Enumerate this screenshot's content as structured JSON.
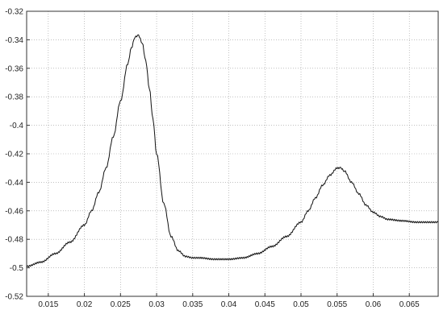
{
  "chart_data": {
    "type": "line",
    "title": "",
    "xlabel": "",
    "ylabel": "",
    "xlim": [
      0.012,
      0.069
    ],
    "ylim": [
      -0.52,
      -0.32
    ],
    "grid": true,
    "x_ticks": [
      0.015,
      0.02,
      0.025,
      0.03,
      0.035,
      0.04,
      0.045,
      0.05,
      0.055,
      0.06,
      0.065
    ],
    "x_tick_labels": [
      "0.015",
      "0.02",
      "0.025",
      "0.03",
      "0.035",
      "0.04",
      "0.045",
      "0.05",
      "0.055",
      "0.06",
      "0.065"
    ],
    "y_ticks": [
      -0.32,
      -0.34,
      -0.36,
      -0.38,
      -0.4,
      -0.42,
      -0.44,
      -0.46,
      -0.48,
      -0.5,
      -0.52
    ],
    "y_tick_labels": [
      "-0.32",
      "-0.34",
      "-0.36",
      "-0.38",
      "-0.4",
      "-0.42",
      "-0.44",
      "-0.46",
      "-0.48",
      "-0.5",
      "-0.52"
    ],
    "series": [
      {
        "color": "#111111",
        "x": [
          0.012,
          0.014,
          0.016,
          0.018,
          0.02,
          0.021,
          0.022,
          0.023,
          0.024,
          0.025,
          0.026,
          0.0265,
          0.027,
          0.0275,
          0.028,
          0.0285,
          0.029,
          0.0295,
          0.03,
          0.031,
          0.032,
          0.033,
          0.034,
          0.035,
          0.036,
          0.038,
          0.04,
          0.042,
          0.044,
          0.046,
          0.048,
          0.05,
          0.051,
          0.052,
          0.053,
          0.054,
          0.055,
          0.0555,
          0.056,
          0.057,
          0.058,
          0.059,
          0.06,
          0.061,
          0.062,
          0.064,
          0.066,
          0.069
        ],
        "y": [
          -0.499,
          -0.496,
          -0.49,
          -0.482,
          -0.47,
          -0.46,
          -0.447,
          -0.43,
          -0.408,
          -0.383,
          -0.357,
          -0.346,
          -0.338,
          -0.337,
          -0.342,
          -0.355,
          -0.374,
          -0.396,
          -0.42,
          -0.455,
          -0.478,
          -0.488,
          -0.492,
          -0.493,
          -0.493,
          -0.494,
          -0.494,
          -0.493,
          -0.49,
          -0.485,
          -0.478,
          -0.468,
          -0.46,
          -0.451,
          -0.442,
          -0.435,
          -0.43,
          -0.43,
          -0.432,
          -0.44,
          -0.448,
          -0.456,
          -0.461,
          -0.464,
          -0.466,
          -0.467,
          -0.468,
          -0.468
        ]
      }
    ]
  }
}
